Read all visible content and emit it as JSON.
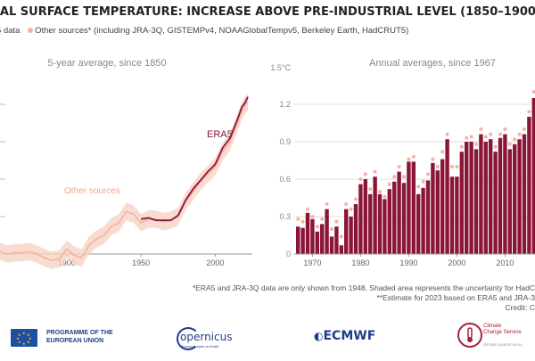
{
  "header": {
    "title": "BAL SURFACE TEMPERATURE: INCREASE ABOVE PRE-INDUSTRIAL LEVEL (1850–1900)",
    "legend_era5": "5 data",
    "legend_other": "Other sources* (including JRA-3Q, GISTEMPv4, NOAAGlobalTempv5, Berkeley Earth, HadCRUT5)"
  },
  "colors": {
    "era5": "#8a1538",
    "other": "#f3b3a0",
    "other_band": "#f8d3c6"
  },
  "footnotes": [
    "*ERA5 and JRA-3Q data are only shown from 1948. Shaded area represents the uncertainty for HadC",
    "**Estimate for 2023 based on ERA5 and JRA-3",
    "Credit: C"
  ],
  "logos": {
    "eu_line1": "PROGRAMME OF THE",
    "eu_line2": "EUROPEAN UNION",
    "copernicus": "opernicus",
    "copernicus_sub": "Europe's eyes on Earth",
    "ecmwf": "ECMWF",
    "ccs_line1": "Climate",
    "ccs_line2": "Change Service",
    "ccs_url": "climate.copernicus.eu"
  },
  "chart_data": [
    {
      "type": "line",
      "title": "5-year average, since 1850",
      "xticks": [
        1900,
        1950,
        2000
      ],
      "xlim": [
        1855,
        2025
      ],
      "ylim": [
        0,
        1.5
      ],
      "annotations": [
        "ERA5",
        "Other sources"
      ],
      "series": [
        {
          "name": "ERA5",
          "x": [
            1950,
            1955,
            1960,
            1965,
            1970,
            1975,
            1980,
            1985,
            1990,
            1995,
            2000,
            2005,
            2010,
            2015,
            2018,
            2020,
            2022
          ],
          "y": [
            0.28,
            0.29,
            0.27,
            0.27,
            0.27,
            0.31,
            0.43,
            0.52,
            0.59,
            0.66,
            0.72,
            0.85,
            0.93,
            1.08,
            1.18,
            1.21,
            1.26
          ]
        },
        {
          "name": "Other sources",
          "x": [
            1855,
            1860,
            1865,
            1870,
            1875,
            1880,
            1885,
            1890,
            1895,
            1900,
            1905,
            1910,
            1915,
            1920,
            1925,
            1930,
            1935,
            1940,
            1945,
            1950,
            1955,
            1960,
            1965,
            1970,
            1975,
            1980,
            1985,
            1990,
            1995,
            2000,
            2005,
            2010,
            2015,
            2018,
            2020,
            2022
          ],
          "y": [
            0.02,
            0.0,
            0.01,
            0.01,
            0.02,
            0.0,
            -0.03,
            -0.05,
            -0.04,
            0.04,
            -0.01,
            -0.03,
            0.07,
            0.12,
            0.15,
            0.22,
            0.25,
            0.34,
            0.32,
            0.25,
            0.28,
            0.28,
            0.26,
            0.27,
            0.3,
            0.42,
            0.5,
            0.58,
            0.64,
            0.7,
            0.82,
            0.9,
            1.05,
            1.15,
            1.19,
            1.22
          ]
        }
      ]
    },
    {
      "type": "bar",
      "title": "Annual averages, since 1967",
      "ylabel_unit": "1.5°C",
      "yticks": [
        "0",
        "0.3",
        "0.6",
        "0.9",
        "1.2"
      ],
      "xticks": [
        1970,
        1980,
        1990,
        2000,
        2010
      ],
      "ylim": [
        0,
        1.5
      ],
      "categories": [
        1967,
        1968,
        1969,
        1970,
        1971,
        1972,
        1973,
        1974,
        1975,
        1976,
        1977,
        1978,
        1979,
        1980,
        1981,
        1982,
        1983,
        1984,
        1985,
        1986,
        1987,
        1988,
        1989,
        1990,
        1991,
        1992,
        1993,
        1994,
        1995,
        1996,
        1997,
        1998,
        1999,
        2000,
        2001,
        2002,
        2003,
        2004,
        2005,
        2006,
        2007,
        2008,
        2009,
        2010,
        2011,
        2012,
        2013,
        2014,
        2015,
        2016
      ],
      "series": [
        {
          "name": "ERA5",
          "values": [
            0.22,
            0.21,
            0.33,
            0.28,
            0.18,
            0.24,
            0.36,
            0.14,
            0.22,
            0.07,
            0.36,
            0.3,
            0.4,
            0.56,
            0.6,
            0.48,
            0.62,
            0.48,
            0.44,
            0.52,
            0.58,
            0.66,
            0.57,
            0.74,
            0.74,
            0.48,
            0.53,
            0.59,
            0.73,
            0.67,
            0.76,
            0.92,
            0.62,
            0.62,
            0.82,
            0.9,
            0.9,
            0.84,
            0.96,
            0.9,
            0.92,
            0.82,
            0.93,
            0.96,
            0.84,
            0.88,
            0.92,
            0.96,
            1.1,
            1.25
          ]
        },
        {
          "name": "Other sources",
          "values": [
            0.28,
            0.26,
            0.36,
            0.3,
            0.22,
            0.28,
            0.4,
            0.2,
            0.26,
            0.14,
            0.4,
            0.36,
            0.44,
            0.6,
            0.64,
            0.52,
            0.66,
            0.5,
            0.46,
            0.56,
            0.62,
            0.7,
            0.62,
            0.76,
            0.78,
            0.54,
            0.58,
            0.64,
            0.76,
            0.7,
            0.82,
            0.96,
            0.7,
            0.7,
            0.86,
            0.93,
            0.94,
            0.88,
            1.0,
            0.94,
            0.96,
            0.86,
            0.96,
            1.0,
            0.88,
            0.92,
            0.96,
            1.0,
            1.14,
            1.3
          ]
        }
      ]
    }
  ]
}
